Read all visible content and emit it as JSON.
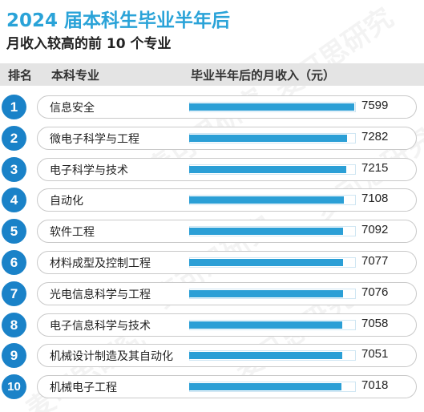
{
  "title": "2024 届本科生毕业半年后",
  "subtitle": "月收入较高的前 10 个专业",
  "watermark": "麦可思研究",
  "colors": {
    "title": "#2aa3d8",
    "badge": "#1a82c8",
    "bar": "#2b9fd6",
    "header_bg": "#e4e4e4"
  },
  "chart_data": {
    "type": "bar",
    "orientation": "horizontal",
    "columns": [
      "排名",
      "本科专业",
      "毕业半年后的月收入（元）"
    ],
    "ranks": [
      "1",
      "2",
      "3",
      "4",
      "5",
      "6",
      "7",
      "8",
      "9",
      "10"
    ],
    "categories": [
      "信息安全",
      "微电子科学与工程",
      "电子科学与技术",
      "自动化",
      "软件工程",
      "材料成型及控制工程",
      "光电信息科学与工程",
      "电子信息科学与技术",
      "机械设计制造及其自动化",
      "机械电子工程"
    ],
    "values": [
      7599,
      7282,
      7215,
      7108,
      7092,
      7077,
      7076,
      7058,
      7051,
      7018
    ],
    "xlim": [
      0,
      7599
    ]
  }
}
